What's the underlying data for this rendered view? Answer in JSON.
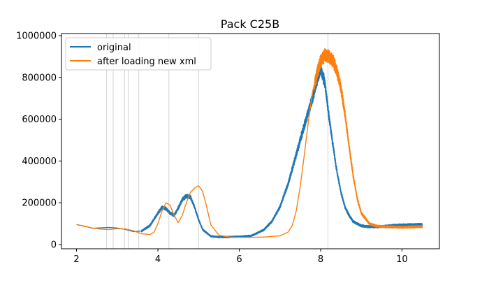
{
  "chart_data": {
    "type": "line",
    "title": "Pack C25B",
    "xlabel": "",
    "ylabel": "",
    "xlim": [
      1.63,
      10.92
    ],
    "ylim": [
      -20000,
      1010000
    ],
    "xticks": [
      2,
      4,
      6,
      8,
      10
    ],
    "xtick_labels": [
      "2",
      "4",
      "6",
      "8",
      "10"
    ],
    "yticks": [
      0,
      200000,
      400000,
      600000,
      800000,
      1000000
    ],
    "ytick_labels": [
      "0",
      "200000",
      "400000",
      "600000",
      "800000",
      "1000000"
    ],
    "grid": false,
    "legend_position": "upper-left",
    "vertical_lines": [
      2.74,
      2.9,
      3.18,
      3.27,
      3.53,
      4.27,
      5.0,
      8.18
    ],
    "series": [
      {
        "name": "original",
        "color": "#1f77b4",
        "noise_start": 3.6,
        "x": [
          2.0,
          2.2,
          2.4,
          2.6,
          2.8,
          3.0,
          3.2,
          3.4,
          3.6,
          3.8,
          4.0,
          4.1,
          4.2,
          4.3,
          4.4,
          4.5,
          4.6,
          4.7,
          4.8,
          4.9,
          5.0,
          5.1,
          5.3,
          5.5,
          5.7,
          6.0,
          6.3,
          6.6,
          6.8,
          7.0,
          7.2,
          7.4,
          7.6,
          7.8,
          7.9,
          8.0,
          8.1,
          8.2,
          8.3,
          8.4,
          8.5,
          8.6,
          8.7,
          8.8,
          9.0,
          9.2,
          9.4,
          9.6,
          9.8,
          10.0,
          10.2,
          10.5
        ],
        "y": [
          96000,
          88000,
          78000,
          80000,
          82000,
          79000,
          73000,
          62000,
          65000,
          90000,
          150000,
          178000,
          172000,
          150000,
          140000,
          175000,
          215000,
          232000,
          228000,
          180000,
          120000,
          72000,
          40000,
          36000,
          36000,
          38000,
          42000,
          70000,
          110000,
          180000,
          290000,
          430000,
          570000,
          700000,
          780000,
          840000,
          780000,
          620000,
          480000,
          350000,
          250000,
          180000,
          140000,
          110000,
          90000,
          85000,
          85000,
          88000,
          92000,
          94000,
          95000,
          96000
        ]
      },
      {
        "name": "after loading new xml",
        "color": "#ff7f0e",
        "noise_start": 7.85,
        "x": [
          2.0,
          2.2,
          2.4,
          2.6,
          2.8,
          3.0,
          3.2,
          3.4,
          3.6,
          3.8,
          3.9,
          4.0,
          4.1,
          4.2,
          4.3,
          4.4,
          4.5,
          4.6,
          4.7,
          4.8,
          4.9,
          5.0,
          5.1,
          5.2,
          5.3,
          5.5,
          5.8,
          6.2,
          6.6,
          7.0,
          7.2,
          7.3,
          7.4,
          7.5,
          7.6,
          7.7,
          7.8,
          7.9,
          8.0,
          8.1,
          8.2,
          8.3,
          8.4,
          8.5,
          8.6,
          8.7,
          8.8,
          8.9,
          9.0,
          9.2,
          9.4,
          9.6,
          9.8,
          10.0,
          10.2,
          10.5
        ],
        "y": [
          96000,
          87000,
          79000,
          74000,
          72000,
          76000,
          75000,
          66000,
          52000,
          48000,
          58000,
          100000,
          160000,
          200000,
          188000,
          140000,
          105000,
          140000,
          200000,
          250000,
          270000,
          282000,
          255000,
          180000,
          95000,
          45000,
          35000,
          34000,
          36000,
          42000,
          60000,
          90000,
          160000,
          280000,
          430000,
          590000,
          730000,
          810000,
          880000,
          905000,
          900000,
          880000,
          830000,
          750000,
          620000,
          470000,
          330000,
          220000,
          150000,
          100000,
          88000,
          85000,
          84000,
          83000,
          84000,
          86000
        ]
      }
    ]
  }
}
